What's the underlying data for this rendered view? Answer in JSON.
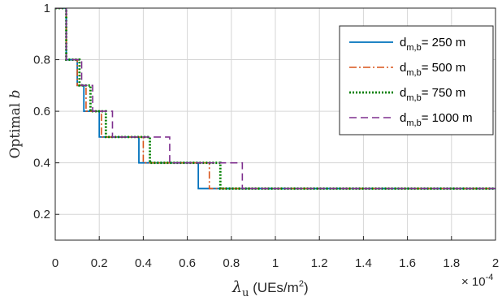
{
  "chart_data": {
    "type": "line",
    "title": "",
    "xlabel": "λ_u (UEs/m²)",
    "xlabel_parts": {
      "symbol": "λ",
      "subscript": "u",
      "rest": " (UEs/m",
      "superscript": "2",
      "close": ")"
    },
    "ylabel": "Optimal b",
    "ylabel_parts": {
      "text": "Optimal ",
      "var": "b"
    },
    "x_exponent_label": {
      "base": "× 10",
      "exponent": "-4"
    },
    "xlim": [
      0,
      2
    ],
    "ylim": [
      0.1,
      1
    ],
    "x_ticks": [
      0,
      0.2,
      0.4,
      0.6,
      0.8,
      1,
      1.2,
      1.4,
      1.6,
      1.8,
      2
    ],
    "x_tick_labels": [
      "0",
      "0.2",
      "0.4",
      "0.6",
      "0.8",
      "1",
      "1.2",
      "1.4",
      "1.6",
      "1.8",
      "2"
    ],
    "y_ticks": [
      0.2,
      0.4,
      0.6,
      0.8,
      1
    ],
    "y_tick_labels": [
      "0.2",
      "0.4",
      "0.6",
      "0.8",
      "1"
    ],
    "grid": true,
    "legend_position": "top-right",
    "series": [
      {
        "name": "d_{m,b}= 250 m",
        "label_parts": {
          "main": "d",
          "sub": "m,b",
          "rest": "= 250 m"
        },
        "color": "#0072BD",
        "dash": "solid",
        "steps": [
          [
            0.05,
            1.0
          ],
          [
            0.1,
            0.8
          ],
          [
            0.13,
            0.7
          ],
          [
            0.2,
            0.6
          ],
          [
            0.38,
            0.5
          ],
          [
            0.65,
            0.4
          ],
          [
            1.13,
            0.3
          ]
        ],
        "x_end": 2.0
      },
      {
        "name": "d_{m,b}= 500 m",
        "label_parts": {
          "main": "d",
          "sub": "m,b",
          "rest": "= 500 m"
        },
        "color": "#D95319",
        "dash": "dashdot",
        "steps": [
          [
            0.05,
            1.0
          ],
          [
            0.1,
            0.8
          ],
          [
            0.14,
            0.7
          ],
          [
            0.21,
            0.6
          ],
          [
            0.4,
            0.5
          ],
          [
            0.7,
            0.4
          ],
          [
            1.22,
            0.3
          ]
        ],
        "x_end": 2.0
      },
      {
        "name": "d_{m,b}= 750 m",
        "label_parts": {
          "main": "d",
          "sub": "m,b",
          "rest": "= 750 m"
        },
        "color": "#008000",
        "dash": "dotted",
        "steps": [
          [
            0.05,
            1.0
          ],
          [
            0.11,
            0.8
          ],
          [
            0.16,
            0.7
          ],
          [
            0.23,
            0.6
          ],
          [
            0.43,
            0.5
          ],
          [
            0.75,
            0.4
          ],
          [
            1.3,
            0.3
          ]
        ],
        "x_end": 2.0
      },
      {
        "name": "d_{m,b}= 1000 m",
        "label_parts": {
          "main": "d",
          "sub": "m,b",
          "rest": "= 1000 m"
        },
        "color": "#7E2F8E",
        "dash": "dashed",
        "steps": [
          [
            0.05,
            1.0
          ],
          [
            0.12,
            0.8
          ],
          [
            0.17,
            0.7
          ],
          [
            0.26,
            0.6
          ],
          [
            0.52,
            0.5
          ],
          [
            0.85,
            0.4
          ],
          [
            1.4,
            0.3
          ]
        ],
        "x_end": 2.0
      }
    ]
  }
}
